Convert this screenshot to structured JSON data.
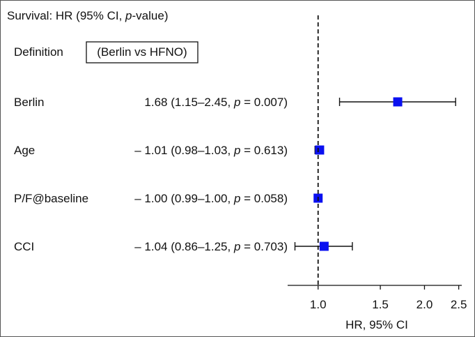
{
  "chart_data": {
    "type": "forest",
    "title": "Survival: HR (95% CI, ",
    "title_italic": "p",
    "title_suffix": "-value)",
    "definition_label": "Definition",
    "definition_value": "(Berlin vs HFNO)",
    "xlabel": "HR, 95% CI",
    "xscale": "log",
    "xlim": [
      0.82,
      2.55
    ],
    "reference_line": 1.0,
    "x_ticks": [
      {
        "value": 1.0,
        "label": "1.0"
      },
      {
        "value": 1.5,
        "label": "1.5"
      },
      {
        "value": 2.0,
        "label": "2.0"
      },
      {
        "value": 2.5,
        "label": "2.5"
      }
    ],
    "rows": [
      {
        "label": "Berlin",
        "est_prefix": "1.68 (1.15–2.45, ",
        "p_symbol": "p",
        "p_text": " = 0.007)",
        "hr": 1.68,
        "lo": 1.15,
        "hi": 2.45
      },
      {
        "label": "Age",
        "est_prefix": "– 1.01 (0.98–1.03, ",
        "p_symbol": "p",
        "p_text": " = 0.613)",
        "hr": 1.01,
        "lo": 0.98,
        "hi": 1.03
      },
      {
        "label": "P/F@baseline",
        "est_prefix": "– 1.00 (0.99–1.00, ",
        "p_symbol": "p",
        "p_text": " = 0.058)",
        "hr": 1.0,
        "lo": 0.99,
        "hi": 1.0
      },
      {
        "label": "CCI",
        "est_prefix": "– 1.04 (0.86–1.25, ",
        "p_symbol": "p",
        "p_text": " = 0.703)",
        "hr": 1.04,
        "lo": 0.86,
        "hi": 1.25
      }
    ],
    "colors": {
      "marker": "#0a10f0",
      "line": "#111111",
      "border": "#555555"
    }
  }
}
